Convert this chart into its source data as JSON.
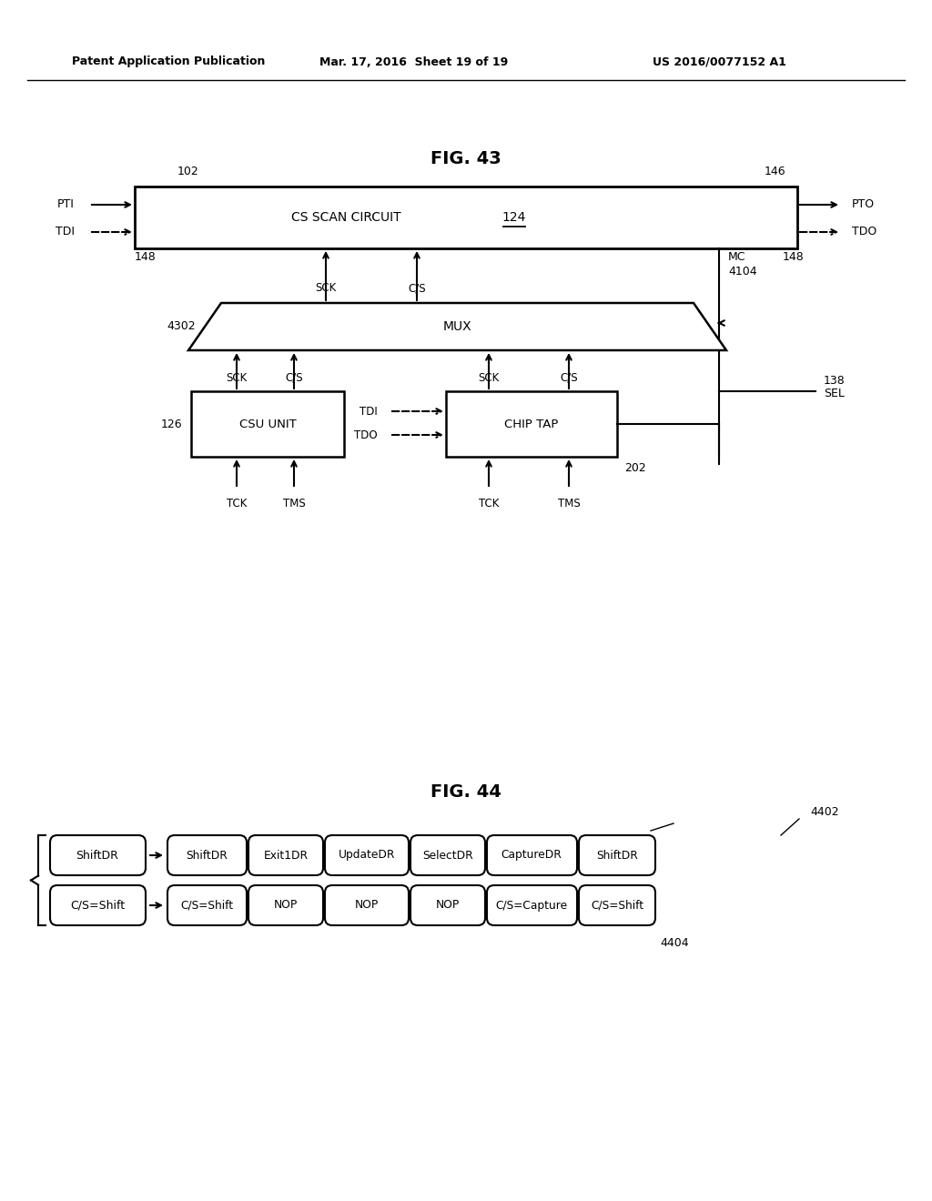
{
  "bg_color": "#ffffff",
  "header_text": "Patent Application Publication",
  "header_date": "Mar. 17, 2016  Sheet 19 of 19",
  "header_patent": "US 2016/0077152 A1",
  "fig43_title": "FIG. 43",
  "fig44_title": "FIG. 44",
  "fig43": {
    "cs_scan_label": "CS SCAN CIRCUIT",
    "cs_scan_ref": "124",
    "mux_label": "MUX",
    "mux_ref": "4302",
    "csu_label": "CSU UNIT",
    "csu_ref": "126",
    "chip_tap_label": "CHIP TAP",
    "chip_tap_ref": "202",
    "ref_102": "102",
    "ref_146": "146",
    "ref_148_left": "148",
    "ref_148_right": "148",
    "ref_4104": "4104",
    "ref_4104_mc": "MC",
    "ref_138": "138",
    "ref_138_sel": "SEL"
  },
  "fig44": {
    "row1": [
      "ShiftDR",
      "ShiftDR",
      "Exit1DR",
      "UpdateDR",
      "SelectDR",
      "CaptureDR",
      "ShiftDR"
    ],
    "row2": [
      "C/S=Shift",
      "C/S=Shift",
      "NOP",
      "NOP",
      "NOP",
      "C/S=Capture",
      "C/S=Shift"
    ],
    "ref_4402": "4402",
    "ref_4404": "4404"
  }
}
